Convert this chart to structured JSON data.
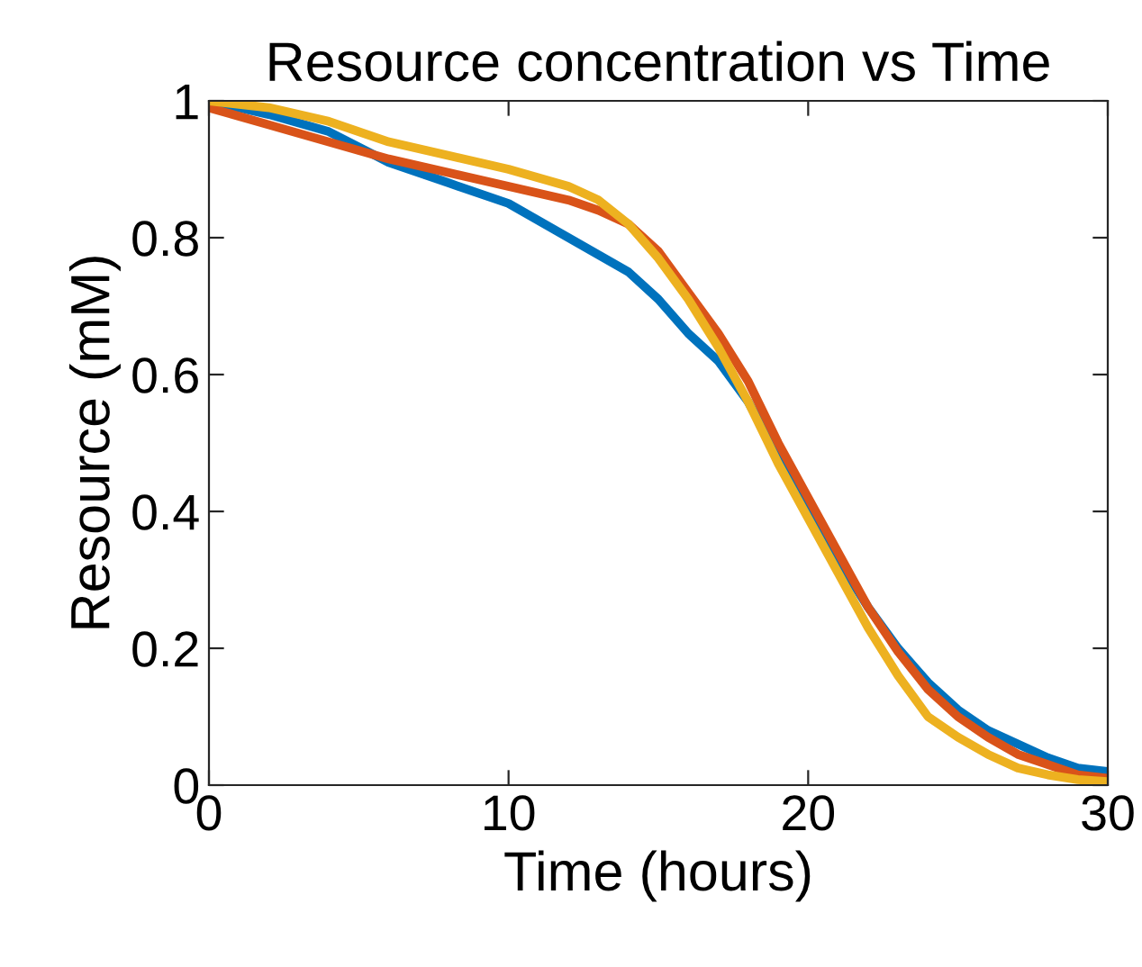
{
  "chart_data": {
    "type": "line",
    "title": "Resource concentration vs Time",
    "xlabel": "Time (hours)",
    "ylabel": "Resource (mM)",
    "x": [
      0,
      2,
      4,
      6,
      8,
      10,
      12,
      13,
      14,
      15,
      16,
      17,
      18,
      19,
      20,
      21,
      22,
      23,
      24,
      25,
      26,
      27,
      28,
      29,
      30
    ],
    "series": [
      {
        "color": "#0072bd",
        "values": [
          1.0,
          0.98,
          0.955,
          0.91,
          0.88,
          0.85,
          0.8,
          0.775,
          0.75,
          0.71,
          0.66,
          0.62,
          0.56,
          0.48,
          0.41,
          0.33,
          0.26,
          0.2,
          0.15,
          0.11,
          0.08,
          0.06,
          0.04,
          0.025,
          0.02
        ]
      },
      {
        "color": "#d95319",
        "values": [
          0.99,
          0.965,
          0.94,
          0.915,
          0.895,
          0.875,
          0.855,
          0.84,
          0.82,
          0.78,
          0.72,
          0.66,
          0.59,
          0.5,
          0.42,
          0.34,
          0.26,
          0.195,
          0.14,
          0.1,
          0.07,
          0.045,
          0.03,
          0.015,
          0.01
        ]
      },
      {
        "color": "#edb120",
        "values": [
          1.0,
          0.99,
          0.97,
          0.94,
          0.92,
          0.9,
          0.875,
          0.855,
          0.82,
          0.77,
          0.71,
          0.64,
          0.56,
          0.47,
          0.39,
          0.31,
          0.23,
          0.16,
          0.1,
          0.07,
          0.045,
          0.025,
          0.015,
          0.008,
          0.005
        ]
      }
    ],
    "xlim": [
      0,
      30
    ],
    "xticks": [
      0,
      10,
      20,
      30
    ],
    "ylim": [
      0,
      1
    ],
    "yticks": [
      0,
      0.2,
      0.4,
      0.6,
      0.8,
      {
        "value": 1,
        "label": "1"
      }
    ],
    "grid": false,
    "legend": false,
    "line_style": "solid",
    "marker": "none"
  }
}
